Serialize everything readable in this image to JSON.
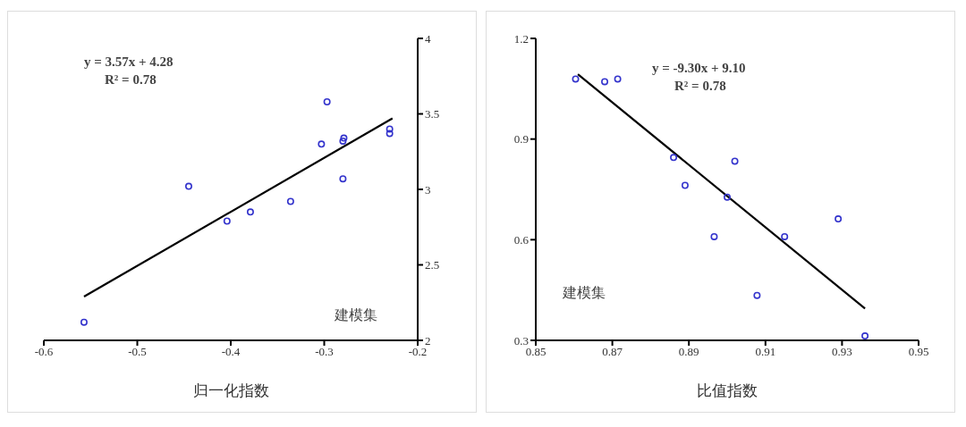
{
  "chart_data": [
    {
      "type": "scatter",
      "xlabel": "归一化指数",
      "xlim": [
        -0.6,
        -0.2
      ],
      "xticks": [
        -0.6,
        -0.5,
        -0.4,
        -0.3,
        -0.2
      ],
      "ylim": [
        2,
        4
      ],
      "yticks": [
        2,
        2.5,
        3,
        3.5,
        4
      ],
      "grid": false,
      "legend": false,
      "marker": "circle",
      "annotations": [
        "y = 3.57x + 4.28",
        "R² = 0.78",
        "建模集"
      ],
      "series": [
        {
          "color": "#3333cc",
          "x": [
            -0.557,
            -0.445,
            -0.404,
            -0.379,
            -0.336,
            -0.303,
            -0.297,
            -0.28,
            -0.279,
            -0.28,
            -0.23,
            -0.23
          ],
          "values": [
            2.12,
            3.02,
            2.79,
            2.85,
            2.92,
            3.3,
            3.58,
            3.32,
            3.34,
            3.07,
            3.4,
            3.37
          ]
        },
        {
          "type": "line",
          "color": "#000000",
          "marker": "none",
          "line_style": "solid",
          "x": [
            -0.557,
            -0.227
          ],
          "values": [
            2.29,
            3.47
          ]
        }
      ]
    },
    {
      "type": "scatter",
      "xlabel": "比值指数",
      "xlim": [
        0.85,
        0.95
      ],
      "xticks": [
        0.85,
        0.87,
        0.89,
        0.91,
        0.93,
        0.95
      ],
      "ylim": [
        0.3,
        1.2
      ],
      "yticks": [
        0.3,
        0.6,
        0.9,
        1.2
      ],
      "grid": false,
      "legend": false,
      "marker": "circle",
      "annotations": [
        "y = -9.30x + 9.10",
        "R² = 0.78",
        "建模集"
      ],
      "series": [
        {
          "color": "#3333cc",
          "x": [
            0.8604,
            0.868,
            0.8714,
            0.886,
            0.889,
            0.8966,
            0.9,
            0.902,
            0.9078,
            0.915,
            0.929,
            0.936
          ],
          "values": [
            1.079,
            1.071,
            1.079,
            0.845,
            0.762,
            0.609,
            0.727,
            0.834,
            0.434,
            0.609,
            0.662,
            0.313
          ]
        },
        {
          "type": "line",
          "color": "#000000",
          "marker": "none",
          "line_style": "solid",
          "x": [
            0.861,
            0.936
          ],
          "values": [
            1.093,
            0.395
          ]
        }
      ]
    }
  ]
}
